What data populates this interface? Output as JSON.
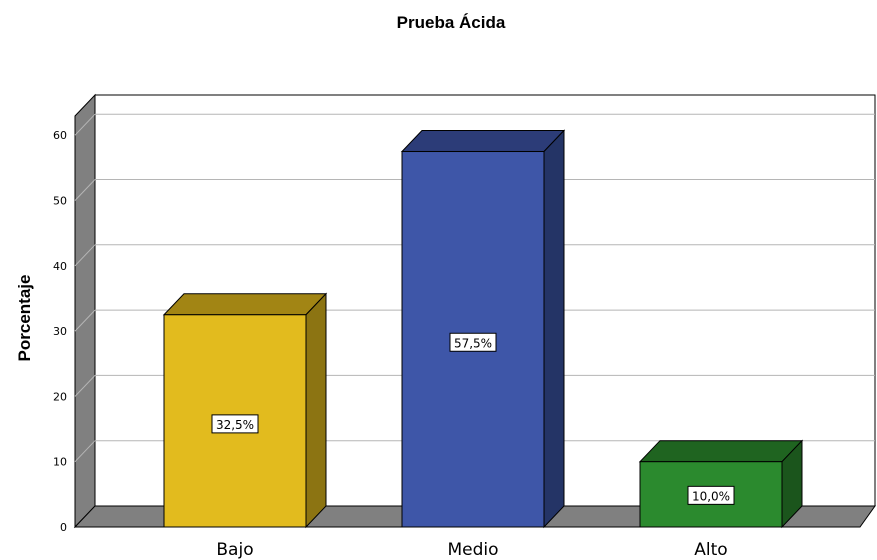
{
  "chart_data": {
    "type": "bar",
    "title": "Prueba Ácida",
    "xlabel": "",
    "ylabel": "Porcentaje",
    "ylim": [
      0,
      65
    ],
    "yticks": [
      0,
      10,
      20,
      30,
      40,
      50,
      60
    ],
    "grid": true,
    "three_d": true,
    "categories": [
      "Bajo",
      "Medio",
      "Alto"
    ],
    "values": [
      32.5,
      57.5,
      10.0
    ],
    "data_labels": [
      "32,5%",
      "57,5%",
      "10,0%"
    ],
    "colors": [
      {
        "face": "#E2BB1E",
        "side": "#8C7412",
        "top": "#A28514"
      },
      {
        "face": "#3E56A8",
        "side": "#243466",
        "top": "#2C3C78"
      },
      {
        "face": "#2B8A2E",
        "side": "#1B551C",
        "top": "#1F6420"
      }
    ],
    "wall_color": "#808080"
  }
}
